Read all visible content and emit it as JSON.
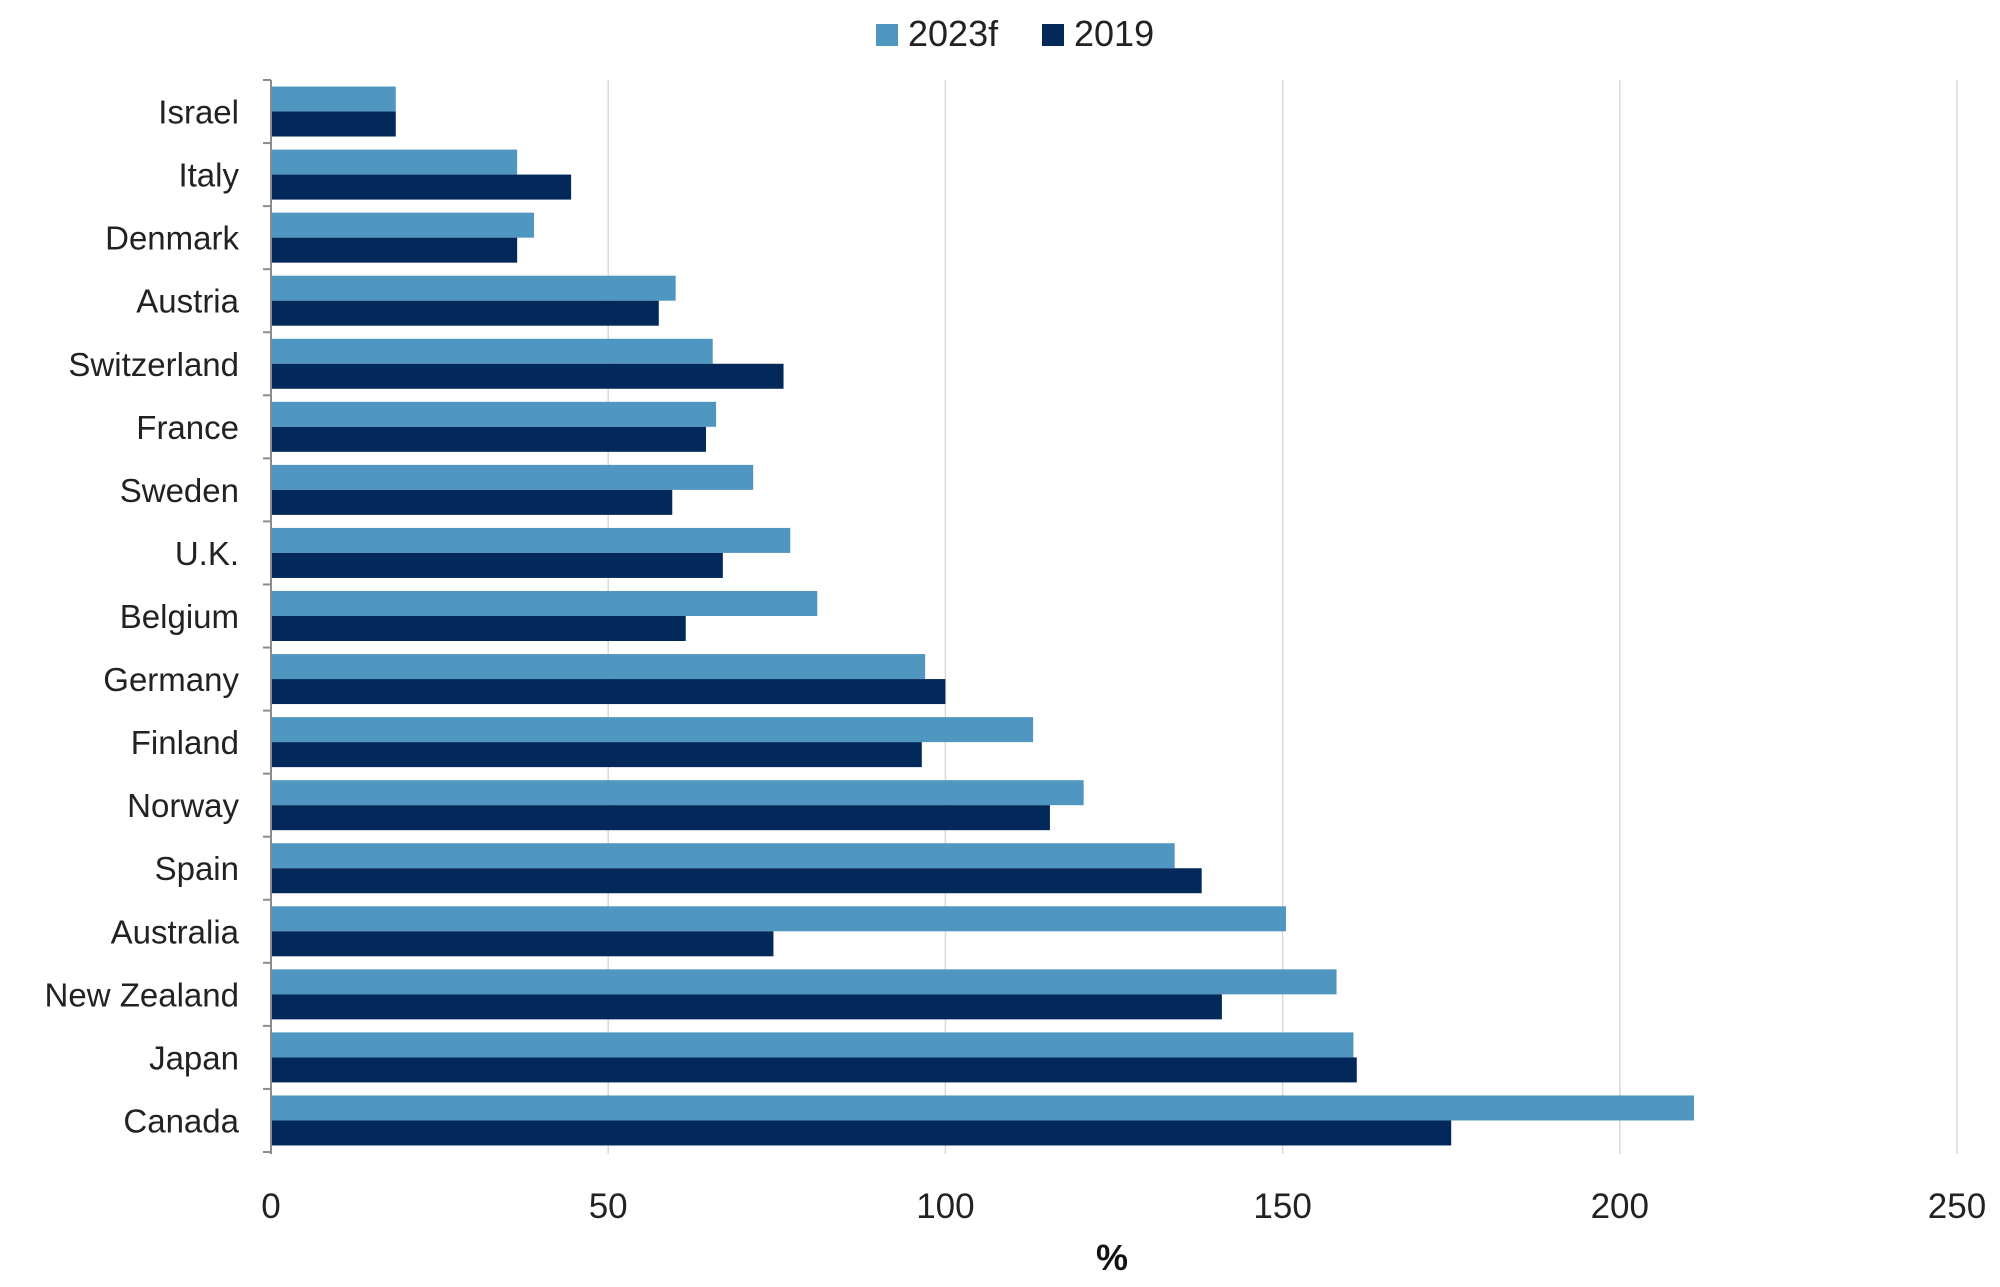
{
  "chart_data": {
    "type": "bar",
    "orientation": "horizontal",
    "categories": [
      "Israel",
      "Italy",
      "Denmark",
      "Austria",
      "Switzerland",
      "France",
      "Sweden",
      "U.K.",
      "Belgium",
      "Germany",
      "Finland",
      "Norway",
      "Spain",
      "Australia",
      "New Zealand",
      "Japan",
      "Canada"
    ],
    "series": [
      {
        "name": "2023f",
        "color": "#4f97c0",
        "values": [
          18.5,
          36.5,
          39,
          60,
          65.5,
          66,
          71.5,
          77,
          81,
          97,
          113,
          120.5,
          134,
          150.5,
          158,
          160.5,
          211
        ]
      },
      {
        "name": "2019",
        "color": "#03295a",
        "values": [
          18.5,
          44.5,
          36.5,
          57.5,
          76,
          64.5,
          59.5,
          67,
          61.5,
          100,
          96.5,
          115.5,
          138,
          74.5,
          141,
          161,
          175
        ]
      }
    ],
    "title": "",
    "xlabel": "%",
    "ylabel": "",
    "xlim": [
      0,
      250
    ],
    "xticks": [
      0,
      50,
      100,
      150,
      200,
      250
    ],
    "grid": "vertical",
    "legend_position": "top-center"
  }
}
